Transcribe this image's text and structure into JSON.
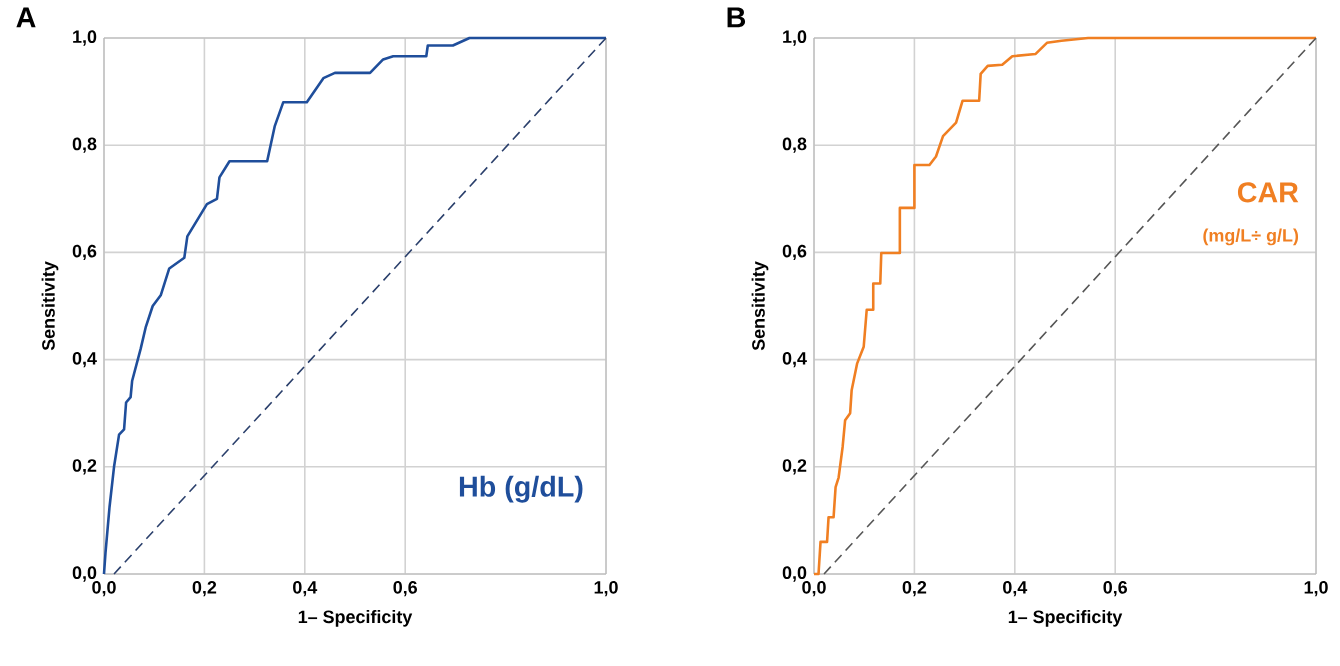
{
  "chart_data": [
    {
      "type": "line",
      "title": "A",
      "xlabel": "1– Specificity",
      "ylabel": "Sensitivity",
      "xlim": [
        0,
        1
      ],
      "ylim": [
        0,
        1
      ],
      "grid": true,
      "legend": false,
      "xticks": [
        {
          "value": 0,
          "label": "0,0"
        },
        {
          "value": 0.2,
          "label": "0,2"
        },
        {
          "value": 0.4,
          "label": "0,4"
        },
        {
          "value": 0.6,
          "label": "0,6"
        },
        {
          "value": 1,
          "label": "1,0"
        }
      ],
      "yticks": [
        {
          "value": 0,
          "label": "0,0"
        },
        {
          "value": 0.2,
          "label": "0,2"
        },
        {
          "value": 0.4,
          "label": "0,4"
        },
        {
          "value": 0.6,
          "label": "0,6"
        },
        {
          "value": 0.8,
          "label": "0,8"
        },
        {
          "value": 1,
          "label": "1,0"
        }
      ],
      "series": [
        {
          "name": "Hb (g/dL)",
          "color": "#1f4e9b",
          "line_style": "solid",
          "x": [
            0,
            0.003,
            0.011,
            0.02,
            0.03,
            0.04,
            0.044,
            0.053,
            0.056,
            0.073,
            0.083,
            0.097,
            0.113,
            0.13,
            0.16,
            0.166,
            0.205,
            0.225,
            0.23,
            0.25,
            0.325,
            0.34,
            0.357,
            0.404,
            0.437,
            0.46,
            0.53,
            0.556,
            0.576,
            0.642,
            0.645,
            0.695,
            0.728,
            1
          ],
          "values": [
            0,
            0.04,
            0.125,
            0.2,
            0.26,
            0.27,
            0.32,
            0.33,
            0.36,
            0.42,
            0.46,
            0.5,
            0.52,
            0.57,
            0.59,
            0.63,
            0.69,
            0.7,
            0.74,
            0.77,
            0.77,
            0.835,
            0.88,
            0.88,
            0.925,
            0.935,
            0.935,
            0.96,
            0.966,
            0.966,
            0.986,
            0.986,
            1,
            1
          ]
        },
        {
          "color": "#2a3f6b",
          "line_style": "dashed",
          "x": [
            0.02,
            1
          ],
          "values": [
            0,
            1
          ]
        }
      ]
    },
    {
      "type": "line",
      "title": "B",
      "xlabel": "1– Specificity",
      "ylabel": "Sensitivity",
      "xlim": [
        0,
        1
      ],
      "ylim": [
        0,
        1
      ],
      "grid": true,
      "legend": false,
      "xticks": [
        {
          "value": 0,
          "label": "0,0"
        },
        {
          "value": 0.2,
          "label": "0,2"
        },
        {
          "value": 0.4,
          "label": "0,4"
        },
        {
          "value": 0.6,
          "label": "0,6"
        },
        {
          "value": 1,
          "label": "1,0"
        }
      ],
      "yticks": [
        {
          "value": 0,
          "label": "0,0"
        },
        {
          "value": 0.2,
          "label": "0,2"
        },
        {
          "value": 0.4,
          "label": "0,4"
        },
        {
          "value": 0.6,
          "label": "0,6"
        },
        {
          "value": 0.8,
          "label": "0,8"
        },
        {
          "value": 1,
          "label": "1,0"
        }
      ],
      "annotations": [
        "(mg/L÷ g/L)"
      ],
      "series": [
        {
          "name": "CAR",
          "color": "#f07f22",
          "line_style": "solid",
          "x": [
            0,
            0.009,
            0.013,
            0.026,
            0.029,
            0.039,
            0.043,
            0.049,
            0.057,
            0.062,
            0.072,
            0.075,
            0.086,
            0.099,
            0.105,
            0.118,
            0.118,
            0.132,
            0.134,
            0.171,
            0.171,
            0.2,
            0.2,
            0.23,
            0.243,
            0.257,
            0.283,
            0.296,
            0.329,
            0.332,
            0.346,
            0.375,
            0.395,
            0.441,
            0.464,
            0.493,
            0.546,
            1
          ],
          "values": [
            0,
            0,
            0.06,
            0.06,
            0.106,
            0.106,
            0.162,
            0.18,
            0.237,
            0.287,
            0.3,
            0.343,
            0.393,
            0.424,
            0.493,
            0.493,
            0.542,
            0.542,
            0.599,
            0.599,
            0.683,
            0.683,
            0.763,
            0.763,
            0.779,
            0.817,
            0.842,
            0.883,
            0.883,
            0.933,
            0.948,
            0.95,
            0.966,
            0.97,
            0.991,
            0.995,
            1,
            1
          ]
        },
        {
          "color": "#555555",
          "line_style": "dashed",
          "x": [
            0.02,
            1
          ],
          "values": [
            0,
            1
          ]
        }
      ]
    }
  ]
}
